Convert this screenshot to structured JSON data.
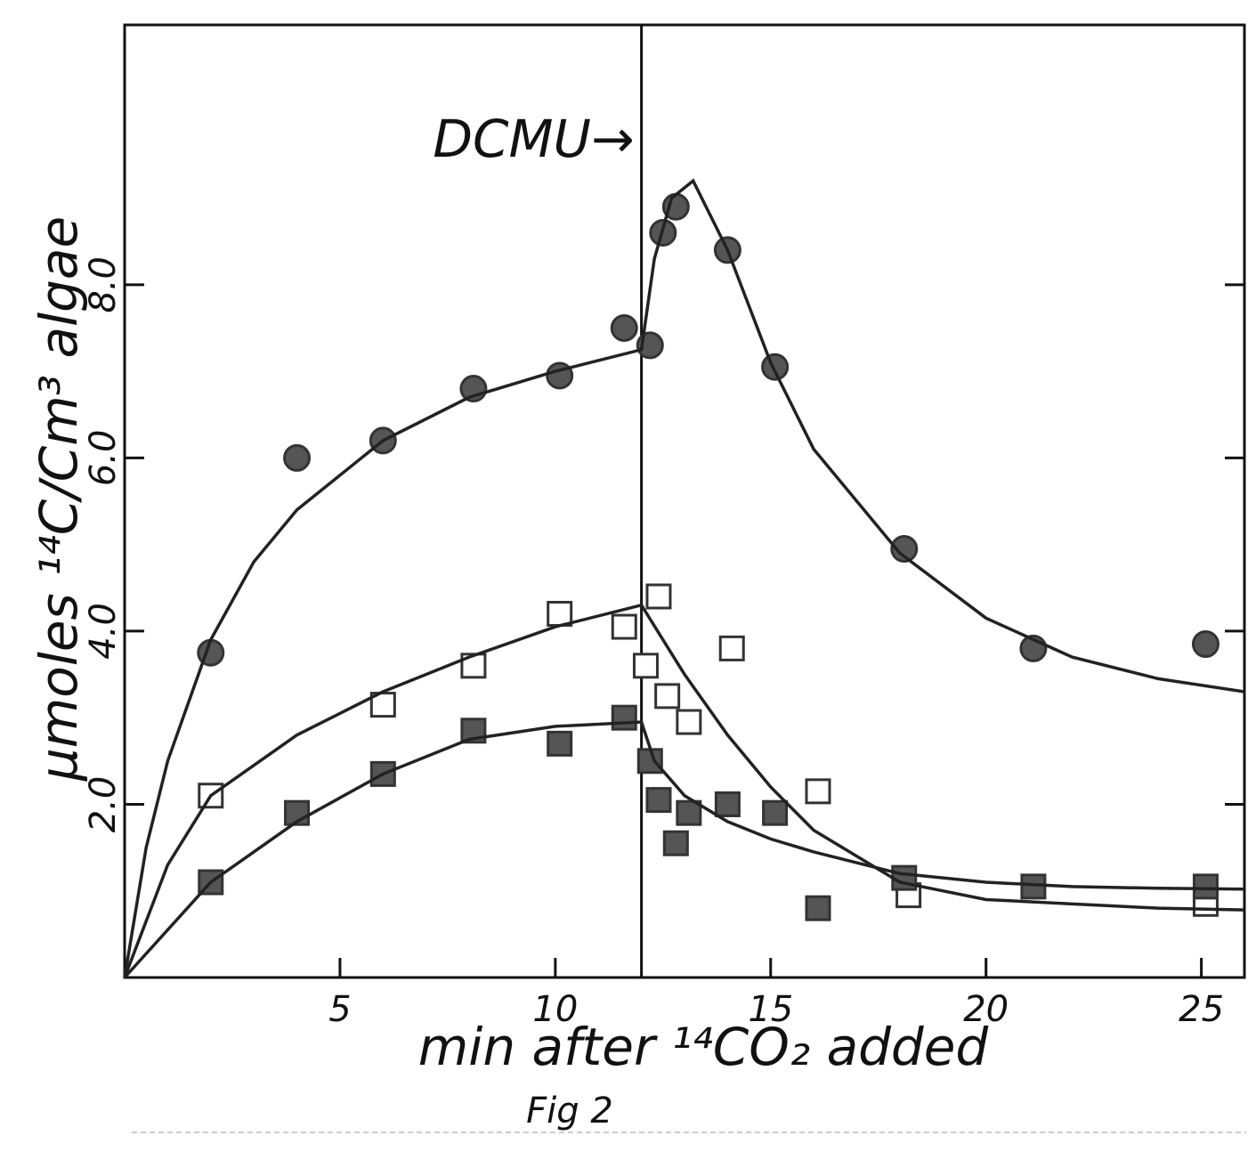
{
  "chart_data": {
    "type": "scatter",
    "x_label": "min after ¹⁴CO₂ added",
    "y_label": "μmoles ¹⁴C/Cm³ algae",
    "caption": "Fig 2",
    "annotation": "DCMU→",
    "vline_x": 12,
    "xlim": [
      0,
      26
    ],
    "ylim": [
      0,
      11
    ],
    "xticks": [
      5,
      10,
      15,
      20,
      25
    ],
    "yticks": [
      {
        "value": 2,
        "label": "2.0"
      },
      {
        "value": 4,
        "label": "4.0"
      },
      {
        "value": 6,
        "label": "6.0"
      },
      {
        "value": 8,
        "label": "8.0"
      }
    ],
    "series": [
      {
        "marker": "circle",
        "color": "#333",
        "x": [
          2,
          4,
          6,
          8.1,
          10.1,
          11.6,
          12.2,
          12.5,
          12.8,
          14,
          15.1,
          18.1,
          21.1,
          25.1
        ],
        "values": [
          3.75,
          6.0,
          6.2,
          6.8,
          6.95,
          7.5,
          7.3,
          8.6,
          8.9,
          8.4,
          7.05,
          4.95,
          3.8,
          3.85
        ]
      },
      {
        "marker": "open-square",
        "color": "#333",
        "x": [
          2,
          6,
          8.1,
          10.1,
          11.6,
          12.1,
          12.4,
          12.6,
          13.1,
          14.1,
          16.1,
          18.2,
          25.1
        ],
        "values": [
          2.1,
          3.15,
          3.6,
          4.2,
          4.05,
          3.6,
          4.4,
          3.25,
          2.95,
          3.8,
          2.15,
          0.95,
          0.85
        ]
      },
      {
        "marker": "filled-square",
        "color": "#333",
        "x": [
          2,
          4,
          6,
          8.1,
          10.1,
          11.6,
          12.2,
          12.4,
          12.8,
          13.1,
          14,
          15.1,
          16.1,
          18.1,
          21.1,
          25.1
        ],
        "values": [
          1.1,
          1.9,
          2.35,
          2.85,
          2.7,
          3.0,
          2.5,
          2.05,
          1.55,
          1.9,
          2.0,
          1.9,
          0.8,
          1.15,
          1.05,
          1.05
        ]
      },
      {
        "marker": "line",
        "color": "#222",
        "x": [
          0,
          0.5,
          1,
          2,
          3,
          4,
          6,
          8,
          10,
          12,
          12.3,
          12.7,
          13.2,
          14,
          15,
          16,
          18,
          20,
          22,
          24,
          26
        ],
        "values": [
          0,
          1.5,
          2.5,
          3.9,
          4.8,
          5.4,
          6.2,
          6.7,
          7.0,
          7.25,
          8.3,
          9.0,
          9.2,
          8.4,
          7.1,
          6.1,
          4.9,
          4.15,
          3.7,
          3.45,
          3.3
        ]
      },
      {
        "marker": "line",
        "color": "#222",
        "x": [
          0,
          1,
          2,
          4,
          6,
          8,
          10,
          12,
          13,
          14,
          15,
          16,
          18,
          20,
          22,
          24,
          26
        ],
        "values": [
          0,
          1.3,
          2.1,
          2.8,
          3.3,
          3.7,
          4.05,
          4.3,
          3.5,
          2.8,
          2.2,
          1.7,
          1.1,
          0.9,
          0.85,
          0.8,
          0.78
        ]
      },
      {
        "marker": "line",
        "color": "#222",
        "x": [
          0,
          2,
          4,
          6,
          8,
          10,
          12,
          12.3,
          13,
          14,
          15,
          16,
          18,
          20,
          22,
          24,
          26
        ],
        "values": [
          0,
          1.1,
          1.8,
          2.35,
          2.75,
          2.9,
          2.95,
          2.5,
          2.1,
          1.8,
          1.6,
          1.45,
          1.2,
          1.1,
          1.05,
          1.03,
          1.02
        ]
      }
    ]
  }
}
